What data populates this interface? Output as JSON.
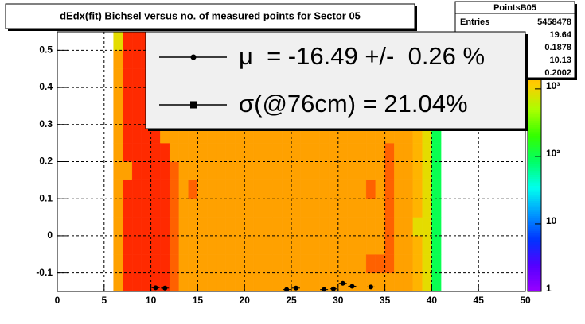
{
  "chart_data": {
    "type": "heatmap",
    "title": "dEdx(fit) Bichsel versus no. of measured points for Sector 05",
    "xlim": [
      0,
      50
    ],
    "ylim": [
      -0.15,
      0.55
    ],
    "xticks": [
      0,
      5,
      10,
      15,
      20,
      25,
      30,
      35,
      40,
      45,
      50
    ],
    "yticks": [
      -0.1,
      0,
      0.1,
      0.2,
      0.3,
      0.4,
      0.5
    ],
    "grid": true,
    "zlog": true,
    "zlim": [
      1,
      7000
    ],
    "zticks": [
      1,
      10,
      {
        "value": 100,
        "label": "10²"
      },
      {
        "value": 1000,
        "label": "10³"
      }
    ],
    "palette": [
      "#9900ff",
      "#5500ff",
      "#0033ff",
      "#0099ff",
      "#00ffee",
      "#00ff66",
      "#33ff00",
      "#aaff00",
      "#ffcc00",
      "#ff9900",
      "#ff0000"
    ],
    "x_bins": [
      6,
      7,
      8,
      9,
      10,
      11,
      12,
      13,
      14,
      15,
      16,
      17,
      18,
      19,
      20,
      21,
      22,
      23,
      24,
      25,
      26,
      27,
      28,
      29,
      30,
      31,
      32,
      33,
      34,
      35,
      36,
      37,
      38,
      39,
      40,
      41
    ],
    "y_bins": [
      -0.15,
      -0.1,
      -0.05,
      0,
      0.05,
      0.1,
      0.15,
      0.2,
      0.25,
      0.3,
      0.35,
      0.4,
      0.45,
      0.5,
      0.55
    ],
    "z": [
      [
        2500,
        2500,
        2500,
        2500,
        2500,
        2500,
        2500,
        2500,
        2500,
        2500,
        2500,
        2500,
        2500,
        900
      ],
      [
        5500,
        5500,
        5500,
        5500,
        5500,
        5500,
        2500,
        5500,
        5500,
        5500,
        5500,
        5500,
        5500,
        5500
      ],
      [
        5500,
        5500,
        5500,
        5500,
        5500,
        5500,
        5500,
        5500,
        5500,
        5500,
        5500,
        5500,
        5500,
        5500
      ],
      [
        5500,
        5500,
        5500,
        5500,
        5500,
        5500,
        5500,
        5500,
        5500,
        5500,
        5500,
        5500,
        5500,
        5500
      ],
      [
        5500,
        5500,
        5500,
        5500,
        5500,
        5500,
        5500,
        5500,
        5500,
        5500,
        5500,
        5500,
        5500,
        5500
      ],
      [
        5500,
        5500,
        5500,
        5500,
        5500,
        5500,
        5500,
        5500,
        2500,
        5500,
        5500,
        5500,
        5500,
        5500
      ],
      [
        4000,
        4000,
        4000,
        4000,
        4000,
        4000,
        4000,
        2500,
        2500,
        2500,
        2500,
        2500,
        2500,
        2500
      ],
      [
        2500,
        2500,
        2500,
        2500,
        2500,
        2500,
        2500,
        2500,
        2500,
        2500,
        2500,
        2500,
        2500,
        2500
      ],
      [
        2500,
        2500,
        2500,
        2500,
        2500,
        4000,
        2500,
        2500,
        2500,
        2500,
        2500,
        2500,
        2500,
        2500
      ],
      [
        2500,
        2500,
        2500,
        2500,
        2500,
        2500,
        2500,
        2500,
        2500,
        2500,
        2500,
        2500,
        2500,
        2500
      ],
      [
        2500,
        2500,
        2500,
        2500,
        2500,
        2500,
        2500,
        2500,
        2500,
        2500,
        2500,
        2500,
        2500,
        2500
      ],
      [
        2500,
        2500,
        2500,
        2500,
        2500,
        2500,
        2500,
        2500,
        2500,
        2500,
        2500,
        2500,
        2500,
        2500
      ],
      [
        2500,
        2500,
        2500,
        2500,
        2500,
        2500,
        2500,
        2500,
        2500,
        2500,
        2500,
        2500,
        2500,
        2500
      ],
      [
        2500,
        2500,
        2500,
        2500,
        2500,
        2500,
        2500,
        2500,
        2500,
        2500,
        2500,
        2500,
        2500,
        2500
      ],
      [
        2500,
        2500,
        2500,
        2500,
        2500,
        2500,
        2500,
        2500,
        2500,
        2500,
        2500,
        2500,
        2500,
        2500
      ],
      [
        2500,
        2500,
        2500,
        2500,
        2500,
        2500,
        2500,
        2500,
        2500,
        2500,
        2500,
        2500,
        2500,
        2500
      ],
      [
        2500,
        2500,
        2500,
        2500,
        2500,
        2500,
        2500,
        2500,
        2500,
        2500,
        2500,
        2500,
        2500,
        2500
      ],
      [
        2500,
        2500,
        2500,
        2500,
        2500,
        2500,
        2500,
        2500,
        2500,
        2500,
        2500,
        2500,
        2500,
        2500
      ],
      [
        2500,
        2500,
        2500,
        2500,
        2500,
        2500,
        2500,
        2500,
        2500,
        2500,
        2500,
        2500,
        2500,
        2500
      ],
      [
        2500,
        2500,
        2500,
        2500,
        2500,
        2500,
        2500,
        2500,
        2500,
        2500,
        2500,
        2500,
        2500,
        2500
      ],
      [
        2500,
        2500,
        2500,
        2500,
        2500,
        2500,
        2500,
        2500,
        2500,
        2500,
        2500,
        2500,
        2500,
        2500
      ],
      [
        2500,
        2500,
        2500,
        2500,
        2500,
        2500,
        2500,
        2500,
        2500,
        2500,
        2500,
        2500,
        2500,
        2500
      ],
      [
        2500,
        2500,
        2500,
        2500,
        2500,
        2500,
        2500,
        2500,
        2500,
        2500,
        2500,
        2500,
        2500,
        2500
      ],
      [
        2500,
        2500,
        2500,
        2500,
        2500,
        2500,
        2500,
        2500,
        2500,
        2500,
        2500,
        2500,
        2500,
        2500
      ],
      [
        2500,
        2500,
        2500,
        2500,
        2500,
        2500,
        2500,
        2500,
        2500,
        2500,
        2500,
        2500,
        2500,
        2500
      ],
      [
        2500,
        2500,
        2500,
        2500,
        2500,
        2500,
        2500,
        2500,
        2500,
        2500,
        2500,
        2500,
        2500,
        2500
      ],
      [
        2500,
        2500,
        2500,
        2500,
        2500,
        2500,
        2500,
        2500,
        2500,
        2500,
        2500,
        2500,
        2500,
        2500
      ],
      [
        2500,
        4000,
        2500,
        2500,
        2500,
        4000,
        2500,
        2500,
        2500,
        2500,
        2500,
        2500,
        2500,
        2500
      ],
      [
        2500,
        4000,
        2500,
        2500,
        2500,
        2500,
        2500,
        2500,
        2500,
        2500,
        2500,
        2500,
        2500,
        2500
      ],
      [
        2500,
        4000,
        4000,
        4000,
        4000,
        4000,
        4000,
        4000,
        2500,
        2500,
        2500,
        2500,
        2500,
        2500
      ],
      [
        2500,
        2500,
        2500,
        2500,
        2500,
        2500,
        2500,
        2500,
        2500,
        2500,
        2500,
        2500,
        2500,
        2500
      ],
      [
        2500,
        2500,
        2500,
        2500,
        2500,
        2500,
        2500,
        2500,
        2500,
        2500,
        2500,
        2500,
        2500,
        2500
      ],
      [
        1800,
        1800,
        1800,
        900,
        1800,
        1800,
        1800,
        1800,
        1800,
        1800,
        1800,
        1800,
        1800,
        1800
      ],
      [
        900,
        900,
        900,
        900,
        900,
        900,
        900,
        900,
        900,
        900,
        900,
        900,
        900,
        900
      ],
      [
        100,
        100,
        100,
        100,
        100,
        100,
        100,
        100,
        100,
        100,
        100,
        100,
        100,
        100
      ]
    ],
    "points": {
      "color": "#000000",
      "x": [
        10.5,
        11.5,
        24.5,
        25.5,
        28.5,
        29.5,
        30.5,
        31.5,
        33.5
      ],
      "values": [
        -0.14,
        -0.141,
        -0.145,
        -0.141,
        -0.145,
        -0.143,
        -0.128,
        -0.136,
        -0.138
      ]
    },
    "legend": [
      {
        "label": "μ  = -16.49 +/-  0.26 %",
        "marker": "circle"
      },
      {
        "label": "σ(@76cm) = 21.04%",
        "marker": "square"
      }
    ],
    "stats": {
      "title": "PointsB05",
      "entries_label": "Entries",
      "entries": 5458478,
      "values": [
        19.64,
        0.1878,
        10.13,
        0.2002
      ]
    }
  }
}
